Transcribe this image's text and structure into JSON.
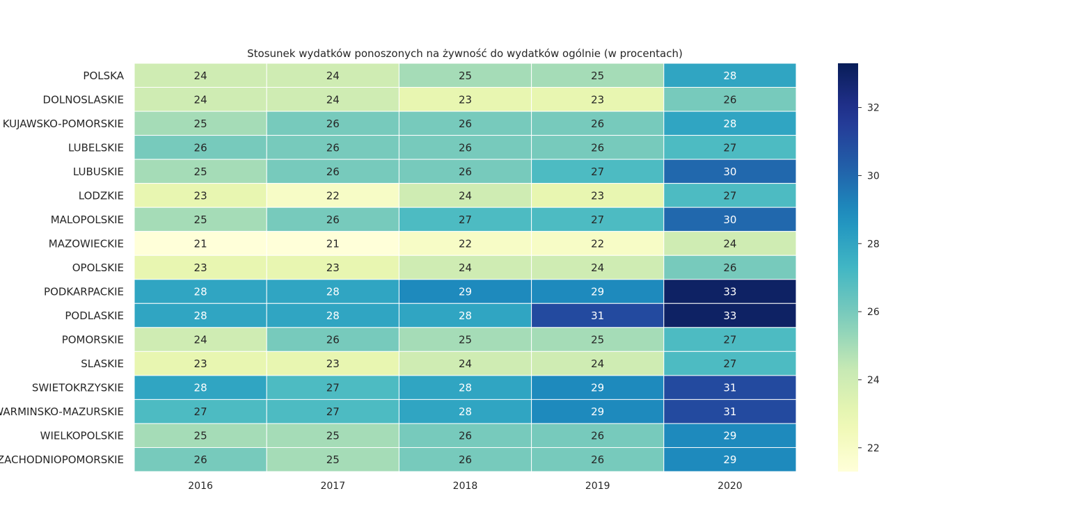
{
  "chart_data": {
    "type": "heatmap",
    "title": "Stosunek wydatków ponoszonych na żywność do wydatków ogólnie (w procentach)",
    "xlabel": "",
    "ylabel": "",
    "colormap": "YlGnBu",
    "columns": [
      "2016",
      "2017",
      "2018",
      "2019",
      "2020"
    ],
    "rows": [
      {
        "label": "POLSKA",
        "values": [
          24,
          24,
          25,
          25,
          28
        ]
      },
      {
        "label": "DOLNOSLASKIE",
        "values": [
          24,
          24,
          23,
          23,
          26
        ]
      },
      {
        "label": "KUJAWSKO-POMORSKIE",
        "values": [
          25,
          26,
          26,
          26,
          28
        ]
      },
      {
        "label": "LUBELSKIE",
        "values": [
          26,
          26,
          26,
          26,
          27
        ]
      },
      {
        "label": "LUBUSKIE",
        "values": [
          25,
          26,
          26,
          27,
          30
        ]
      },
      {
        "label": "LODZKIE",
        "values": [
          23,
          22,
          24,
          23,
          27
        ]
      },
      {
        "label": "MALOPOLSKIE",
        "values": [
          25,
          26,
          27,
          27,
          30
        ]
      },
      {
        "label": "MAZOWIECKIE",
        "values": [
          21,
          21,
          22,
          22,
          24
        ]
      },
      {
        "label": "OPOLSKIE",
        "values": [
          23,
          23,
          24,
          24,
          26
        ]
      },
      {
        "label": "PODKARPACKIE",
        "values": [
          28,
          28,
          29,
          29,
          33
        ]
      },
      {
        "label": "PODLASKIE",
        "values": [
          28,
          28,
          28,
          31,
          33
        ]
      },
      {
        "label": "POMORSKIE",
        "values": [
          24,
          26,
          25,
          25,
          27
        ]
      },
      {
        "label": "SLASKIE",
        "values": [
          23,
          23,
          24,
          24,
          27
        ]
      },
      {
        "label": "SWIETOKRZYSKIE",
        "values": [
          28,
          27,
          28,
          29,
          31
        ]
      },
      {
        "label": "WARMINSKO-MAZURSKIE",
        "values": [
          27,
          27,
          28,
          29,
          31
        ]
      },
      {
        "label": "WIELKOPOLSKIE",
        "values": [
          25,
          25,
          26,
          26,
          29
        ]
      },
      {
        "label": "ZACHODNIOPOMORSKIE",
        "values": [
          26,
          25,
          26,
          26,
          29
        ]
      }
    ],
    "colorbar": {
      "range": [
        21.3,
        33.3
      ],
      "ticks": [
        22,
        24,
        26,
        28,
        30,
        32
      ]
    },
    "grid": false,
    "legend": "right"
  }
}
